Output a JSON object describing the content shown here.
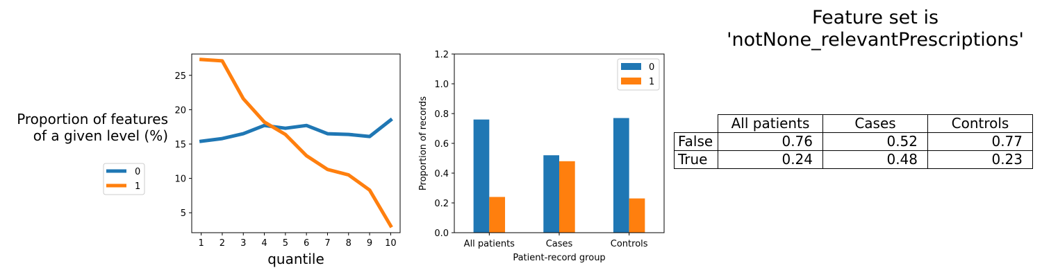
{
  "chart_data": [
    {
      "type": "line",
      "xlabel": "quantile",
      "ylabel_lines": [
        "Proportion of features",
        "of a given level (%)"
      ],
      "x": [
        1,
        2,
        3,
        4,
        5,
        6,
        7,
        8,
        9,
        10
      ],
      "xticks": [
        1,
        2,
        3,
        4,
        5,
        6,
        7,
        8,
        9,
        10
      ],
      "yticks": [
        5,
        10,
        15,
        20,
        25
      ],
      "ylim": [
        2.1,
        28.1
      ],
      "xlim": [
        0.55,
        10.45
      ],
      "legend_position": "left, outside the axes",
      "series": [
        {
          "name": "0",
          "color": "#1f77b4",
          "values": [
            15.4,
            15.8,
            16.5,
            17.7,
            17.3,
            17.7,
            16.5,
            16.4,
            16.1,
            18.5
          ]
        },
        {
          "name": "1",
          "color": "#ff7f0e",
          "values": [
            27.3,
            27.1,
            21.6,
            18.2,
            16.4,
            13.3,
            11.3,
            10.5,
            8.3,
            3.1
          ]
        }
      ]
    },
    {
      "type": "bar",
      "xlabel": "Patient-record group",
      "ylabel": "Proportion of records",
      "categories": [
        "All patients",
        "Cases",
        "Controls"
      ],
      "yticks": [
        0.0,
        0.2,
        0.4,
        0.6,
        0.8,
        1.0,
        1.2
      ],
      "ylim": [
        0,
        1.2
      ],
      "legend_position": "upper right",
      "series": [
        {
          "name": "0",
          "color": "#1f77b4",
          "values": [
            0.76,
            0.52,
            0.77
          ]
        },
        {
          "name": "1",
          "color": "#ff7f0e",
          "values": [
            0.24,
            0.48,
            0.23
          ]
        }
      ]
    },
    {
      "type": "table",
      "title_lines": [
        "Feature set is",
        "'notNone_relevantPrescriptions'"
      ],
      "columns": [
        "All patients",
        "Cases",
        "Controls"
      ],
      "rows": [
        {
          "label": "False",
          "values": [
            "0.76",
            "0.52",
            "0.77"
          ]
        },
        {
          "label": "True",
          "values": [
            "0.24",
            "0.48",
            "0.23"
          ]
        }
      ]
    }
  ]
}
